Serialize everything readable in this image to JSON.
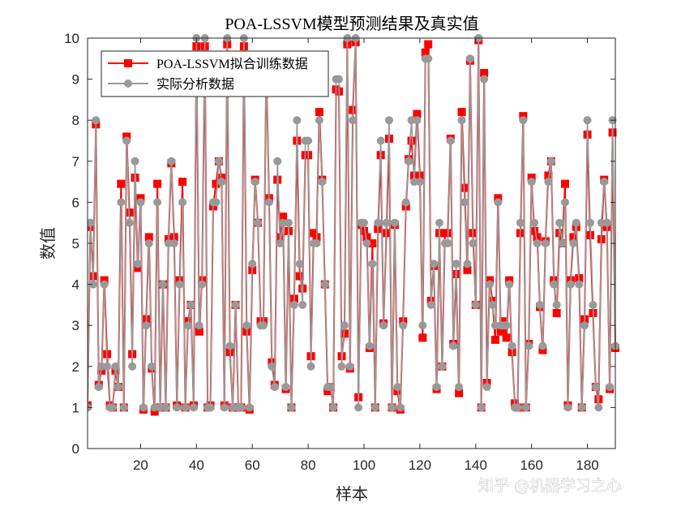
{
  "chart_data": {
    "type": "line",
    "title": "POA-LSSVM模型预测结果及真实值",
    "xlabel": "样本",
    "ylabel": "数值",
    "xlim": [
      1,
      190
    ],
    "ylim": [
      0,
      10
    ],
    "xticks": [
      20,
      40,
      60,
      80,
      100,
      120,
      140,
      160,
      180
    ],
    "yticks": [
      0,
      1,
      2,
      3,
      4,
      5,
      6,
      7,
      8,
      9,
      10
    ],
    "grid": false,
    "legend_placement": "top-left",
    "series": [
      {
        "name": "POA-LSSVM拟合训练数据",
        "color": "#ff0000",
        "marker": "square",
        "values": [
          1.05,
          5.4,
          4.2,
          7.9,
          1.55,
          1.9,
          4.1,
          2.3,
          1.05,
          1,
          1.9,
          1.5,
          6.45,
          1,
          7.6,
          5.75,
          2.3,
          6.6,
          4.4,
          6.1,
          0.95,
          3.15,
          5.15,
          1.95,
          0.9,
          6.45,
          1,
          4,
          1,
          5.1,
          6.95,
          5.15,
          1.05,
          4.1,
          6.5,
          1,
          3.1,
          3.5,
          1.05,
          9.8,
          2.85,
          4.1,
          9.8,
          1,
          1.05,
          5.9,
          6.45,
          7,
          6.6,
          1.05,
          9.85,
          2.35,
          1,
          3.5,
          1,
          1,
          9.8,
          2.85,
          0.95,
          4.35,
          6.55,
          5.5,
          3.1,
          3.1,
          9.4,
          6.1,
          2.1,
          1.55,
          6.55,
          5.15,
          5.65,
          1.45,
          5.3,
          1,
          3.65,
          7.5,
          4.2,
          3.9,
          7.15,
          7.15,
          2.25,
          5.25,
          5.15,
          8.2,
          6.55,
          4,
          1.4,
          1.5,
          1,
          8.75,
          8.7,
          2.25,
          2.8,
          9.85,
          1.95,
          8.25,
          9.9,
          1.25,
          5.45,
          5.3,
          5.15,
          2.45,
          5.0,
          1,
          5.35,
          7.15,
          3.05,
          5.25,
          7.55,
          1,
          5.45,
          1.4,
          0.95,
          3.1,
          5.9,
          7.05,
          7.5,
          6.65,
          8.15,
          6.65,
          2.7,
          9.65,
          9.85,
          3.6,
          4.45,
          1.45,
          5.25,
          2,
          5.25,
          5.25,
          7.55,
          2.55,
          4.25,
          1.35,
          8.2,
          6.35,
          4.35,
          9.45,
          5.25,
          3.5,
          9.95,
          1,
          9.15,
          1.6,
          4.1,
          3.6,
          2.65,
          6.1,
          2.85,
          3.1,
          2.7,
          4.1,
          2.35,
          1.1,
          1,
          5.25,
          8.1,
          1,
          2.55,
          6.6,
          5.3,
          5.15,
          3.45,
          2.4,
          5.05,
          6.65,
          7,
          4.1,
          3.3,
          5.25,
          5,
          6.45,
          1.05,
          4.1,
          5.15,
          5.4,
          4.15,
          1,
          3.15,
          7.65,
          5.2,
          3.3,
          1.5,
          1.2,
          5.1,
          6.55,
          5.4,
          1.45,
          7.7,
          2.45
        ]
      },
      {
        "name": "实际分析数据",
        "color": "#999999",
        "marker": "circle",
        "values": [
          1,
          5.5,
          4,
          8,
          1.5,
          2,
          4,
          2,
          1,
          1,
          2,
          1.5,
          6,
          1,
          7.5,
          5.5,
          2,
          7,
          4.5,
          6,
          1,
          3,
          5,
          2,
          1,
          6,
          1,
          4,
          1,
          5,
          7,
          5,
          1,
          4,
          6,
          1,
          3,
          3.5,
          1,
          10,
          3,
          4,
          10,
          1,
          1,
          6,
          6,
          7,
          6.5,
          1,
          10,
          2.5,
          1,
          3.5,
          1,
          1,
          10,
          3,
          1,
          4.5,
          6.5,
          5.5,
          3,
          3,
          9.5,
          6,
          2,
          1.5,
          7,
          5,
          5.5,
          1.5,
          5.5,
          1,
          3.5,
          8,
          4.5,
          3.5,
          7.5,
          7.5,
          2,
          5,
          5,
          8,
          6.5,
          4,
          1.5,
          1.5,
          1,
          9,
          9,
          2,
          3,
          10,
          2,
          8,
          10,
          1,
          5.5,
          5.5,
          5,
          2.5,
          4.5,
          1,
          5.5,
          7.5,
          3,
          5.5,
          8,
          1,
          5.5,
          1.5,
          1,
          3,
          6,
          7,
          8,
          6.5,
          8,
          6.5,
          3,
          9.5,
          9.5,
          3.5,
          4.5,
          1.5,
          5.5,
          2,
          5,
          5,
          7.5,
          2.5,
          4.5,
          1.5,
          8,
          6,
          4.5,
          9.5,
          5,
          3.5,
          10,
          1,
          9,
          1.5,
          4,
          3.5,
          3,
          6,
          3,
          3,
          3,
          4,
          2.5,
          1,
          1,
          5.5,
          8,
          1,
          2.5,
          6.5,
          5.5,
          5,
          3.5,
          2.5,
          5,
          6.5,
          7,
          4,
          3.5,
          5.5,
          5,
          6,
          1,
          4,
          5,
          5.5,
          4,
          1,
          3,
          8,
          5.5,
          3.5,
          1.5,
          1,
          5.5,
          6.5,
          5.5,
          1.5,
          8,
          2.5
        ]
      }
    ]
  },
  "watermark": "知乎 @机器学习之心"
}
